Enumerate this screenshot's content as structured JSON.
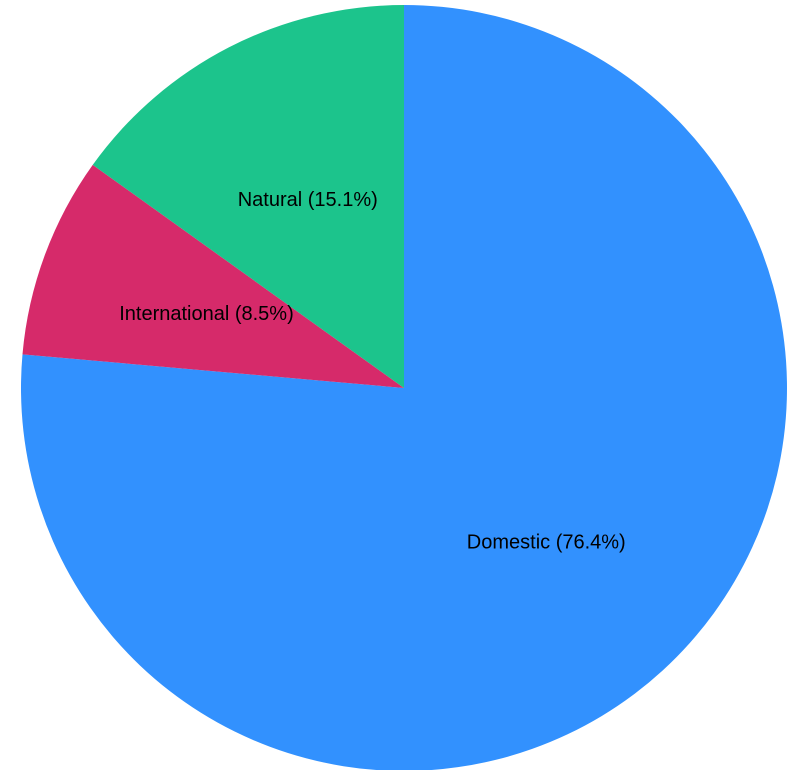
{
  "chart_data": {
    "type": "pie",
    "title": "",
    "start_angle": "top",
    "direction": "clockwise",
    "slices": [
      {
        "label": "Domestic (76.4%)",
        "value": 76.4,
        "color": "#3291fe"
      },
      {
        "label": "International (8.5%)",
        "value": 8.5,
        "color": "#d62a6a"
      },
      {
        "label": "Natural (15.1%)",
        "value": 15.1,
        "color": "#1cc48c"
      }
    ]
  }
}
